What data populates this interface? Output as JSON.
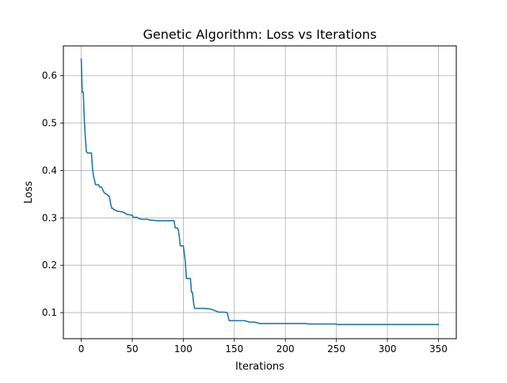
{
  "chart_data": {
    "type": "line",
    "title": "Genetic Algorithm: Loss vs Iterations",
    "xlabel": "Iterations",
    "ylabel": "Loss",
    "xlim": [
      -17.5,
      367.5
    ],
    "ylim": [
      0.045,
      0.663
    ],
    "xticks": [
      0,
      50,
      100,
      150,
      200,
      250,
      300,
      350
    ],
    "yticks": [
      0.1,
      0.2,
      0.3,
      0.4,
      0.5,
      0.6
    ],
    "xtick_labels": [
      "0",
      "50",
      "100",
      "150",
      "200",
      "250",
      "300",
      "350"
    ],
    "ytick_labels": [
      "0.1",
      "0.2",
      "0.3",
      "0.4",
      "0.5",
      "0.6"
    ],
    "grid": true,
    "line_color": "#1f77b4",
    "series": [
      {
        "x": [
          0,
          1,
          2,
          3,
          4,
          5,
          6,
          7,
          8,
          10,
          11,
          12,
          13,
          14,
          15,
          17,
          18,
          19,
          20,
          22,
          23,
          25,
          26,
          27,
          28,
          29,
          30,
          31,
          32,
          33,
          35,
          37,
          38,
          40,
          41,
          43,
          45,
          46,
          48,
          50,
          51,
          52,
          54,
          55,
          57,
          60,
          65,
          68,
          70,
          75,
          80,
          85,
          90,
          91,
          92,
          93,
          94,
          95,
          96,
          97,
          98,
          99,
          100,
          101,
          102,
          103,
          104,
          105,
          106,
          107,
          108,
          109,
          110,
          111,
          112,
          113,
          114,
          115,
          116,
          117,
          120,
          125,
          126,
          130,
          135,
          140,
          143,
          145,
          150,
          160,
          165,
          170,
          175,
          178,
          180,
          200,
          220,
          223,
          225,
          250,
          251,
          300,
          350
        ],
        "y": [
          0.635,
          0.565,
          0.565,
          0.508,
          0.47,
          0.44,
          0.437,
          0.437,
          0.437,
          0.437,
          0.405,
          0.388,
          0.38,
          0.37,
          0.37,
          0.37,
          0.365,
          0.365,
          0.365,
          0.355,
          0.352,
          0.35,
          0.347,
          0.347,
          0.34,
          0.328,
          0.32,
          0.32,
          0.317,
          0.317,
          0.314,
          0.314,
          0.313,
          0.313,
          0.312,
          0.31,
          0.307,
          0.307,
          0.306,
          0.306,
          0.301,
          0.301,
          0.301,
          0.301,
          0.298,
          0.297,
          0.297,
          0.295,
          0.295,
          0.294,
          0.294,
          0.294,
          0.294,
          0.294,
          0.279,
          0.279,
          0.279,
          0.276,
          0.262,
          0.241,
          0.241,
          0.241,
          0.241,
          0.225,
          0.207,
          0.172,
          0.172,
          0.172,
          0.172,
          0.172,
          0.143,
          0.143,
          0.122,
          0.109,
          0.109,
          0.109,
          0.109,
          0.109,
          0.109,
          0.109,
          0.109,
          0.108,
          0.108,
          0.105,
          0.101,
          0.101,
          0.1,
          0.083,
          0.083,
          0.083,
          0.08,
          0.08,
          0.077,
          0.077,
          0.077,
          0.077,
          0.077,
          0.076,
          0.076,
          0.076,
          0.075,
          0.075,
          0.075
        ]
      }
    ]
  }
}
